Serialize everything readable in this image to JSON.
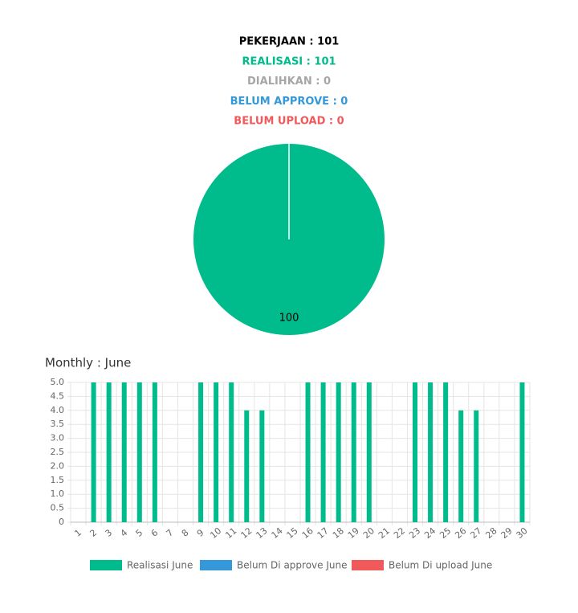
{
  "summary": [
    {
      "text": "PEKERJAAN : 101",
      "color": "#000000"
    },
    {
      "text": "REALISASI : 101",
      "color": "#00bc8c"
    },
    {
      "text": "DIALIHKAN : 0",
      "color": "#a6a6a6"
    },
    {
      "text": "BELUM APPROVE : 0",
      "color": "#3498db"
    },
    {
      "text": "BELUM UPLOAD : 0",
      "color": "#f05a5a"
    }
  ],
  "chart_data": [
    {
      "type": "pie",
      "values": [
        100
      ],
      "colors": [
        "#00bc8c"
      ]
    },
    {
      "type": "bar",
      "title": "Monthly : June",
      "categories": [
        "1",
        "2",
        "3",
        "4",
        "5",
        "6",
        "7",
        "8",
        "9",
        "10",
        "11",
        "12",
        "13",
        "14",
        "15",
        "16",
        "17",
        "18",
        "19",
        "20",
        "21",
        "22",
        "23",
        "24",
        "25",
        "26",
        "27",
        "28",
        "29",
        "30"
      ],
      "series": [
        {
          "name": "Realisasi June",
          "color": "#00bc8c",
          "values": [
            0,
            5,
            5,
            5,
            5,
            5,
            0,
            0,
            5,
            5,
            5,
            4,
            4,
            0,
            0,
            5,
            5,
            5,
            5,
            5,
            0,
            0,
            5,
            5,
            5,
            4,
            4,
            0,
            0,
            5
          ]
        },
        {
          "name": "Belum Di approve June",
          "color": "#3498db",
          "values": [
            0,
            0,
            0,
            0,
            0,
            0,
            0,
            0,
            0,
            0,
            0,
            0,
            0,
            0,
            0,
            0,
            0,
            0,
            0,
            0,
            0,
            0,
            0,
            0,
            0,
            0,
            0,
            0,
            0,
            0
          ]
        },
        {
          "name": "Belum Di upload June",
          "color": "#f05a5a",
          "values": [
            0,
            0,
            0,
            0,
            0,
            0,
            0,
            0,
            0,
            0,
            0,
            0,
            0,
            0,
            0,
            0,
            0,
            0,
            0,
            0,
            0,
            0,
            0,
            0,
            0,
            0,
            0,
            0,
            0,
            0
          ]
        }
      ],
      "stacked": true,
      "ylim": [
        0,
        5
      ],
      "yticks": [
        0,
        0.5,
        {
          "value": 1,
          "label": "1.0"
        },
        1.5,
        {
          "value": 2,
          "label": "2.0"
        },
        2.5,
        {
          "value": 3,
          "label": "3.0"
        },
        3.5,
        {
          "value": 4,
          "label": "4.0"
        },
        4.5,
        {
          "value": 5,
          "label": "5.0"
        }
      ],
      "grid": true
    }
  ]
}
